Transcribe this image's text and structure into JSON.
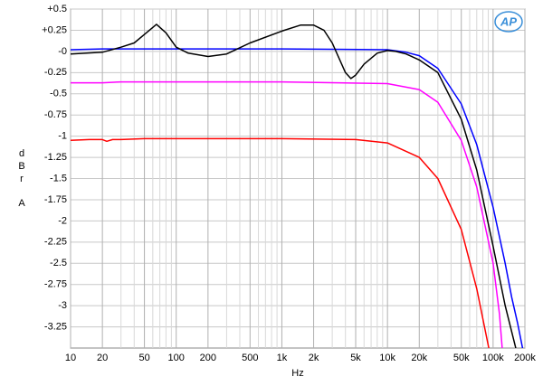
{
  "chart_data": {
    "type": "line",
    "xlabel": "Hz",
    "ylabel": [
      "d",
      "B",
      "r",
      "A"
    ],
    "logx": true,
    "grid": true,
    "xlim": [
      10,
      200000
    ],
    "ylim": [
      -3.5,
      0.5
    ],
    "yticks": [
      {
        "value": 0.5,
        "label": "+0.5"
      },
      {
        "value": 0.25,
        "label": "+0.25"
      },
      {
        "value": 0,
        "label": "-0"
      },
      -0.25,
      -0.5,
      -0.75,
      -1,
      -1.25,
      -1.5,
      -1.75,
      -2,
      -2.25,
      -2.5,
      -2.75,
      -3,
      -3.25
    ],
    "xticks": [
      10,
      20,
      50,
      100,
      200,
      500,
      {
        "value": 1000,
        "label": "1k"
      },
      {
        "value": 2000,
        "label": "2k"
      },
      {
        "value": 5000,
        "label": "5k"
      },
      {
        "value": 10000,
        "label": "10k"
      },
      {
        "value": 20000,
        "label": "20k"
      },
      {
        "value": 50000,
        "label": "50k"
      },
      {
        "value": 100000,
        "label": "100k"
      },
      {
        "value": 200000,
        "label": "200k"
      }
    ],
    "xminorticks": [
      30,
      40,
      60,
      70,
      80,
      90,
      300,
      400,
      600,
      700,
      800,
      900,
      3000,
      4000,
      6000,
      7000,
      8000,
      9000,
      30000,
      40000,
      60000,
      70000,
      80000,
      90000,
      300000,
      400000,
      600000,
      700000,
      800000,
      900000
    ],
    "series": [
      {
        "color": "#0000ff",
        "x": [
          10,
          20,
          50,
          100,
          1000,
          10000,
          15000,
          20000,
          30000,
          50000,
          70000,
          100000,
          130000,
          150000,
          170000,
          190000
        ],
        "values": [
          0.02,
          0.03,
          0.03,
          0.03,
          0.03,
          0.02,
          -0.01,
          -0.05,
          -0.2,
          -0.62,
          -1.1,
          -1.84,
          -2.5,
          -2.9,
          -3.2,
          -3.5
        ]
      },
      {
        "color": "#ff00ff",
        "x": [
          10,
          20,
          30,
          50,
          100,
          1000,
          10000,
          20000,
          30000,
          50000,
          70000,
          100000,
          115000,
          122000
        ],
        "values": [
          -0.37,
          -0.37,
          -0.36,
          -0.36,
          -0.36,
          -0.36,
          -0.38,
          -0.45,
          -0.6,
          -1.05,
          -1.6,
          -2.5,
          -3.1,
          -3.5
        ]
      },
      {
        "color": "#000000",
        "x": [
          10,
          20,
          30,
          40,
          50,
          65,
          80,
          100,
          130,
          200,
          300,
          500,
          1000,
          1500,
          2000,
          2500,
          3000,
          4000,
          4500,
          5000,
          6000,
          8000,
          10000,
          12000,
          15000,
          20000,
          30000,
          50000,
          70000,
          100000,
          130000,
          164000
        ],
        "values": [
          -0.03,
          -0.01,
          0.05,
          0.1,
          0.2,
          0.32,
          0.22,
          0.05,
          -0.02,
          -0.06,
          -0.03,
          0.1,
          0.24,
          0.31,
          0.31,
          0.25,
          0.1,
          -0.25,
          -0.32,
          -0.28,
          -0.15,
          -0.02,
          0.01,
          0,
          -0.03,
          -0.1,
          -0.25,
          -0.8,
          -1.4,
          -2.3,
          -3.0,
          -3.5
        ]
      },
      {
        "color": "#ff0000",
        "x": [
          10,
          15,
          20,
          22,
          25,
          30,
          50,
          100,
          1000,
          5000,
          10000,
          20000,
          30000,
          50000,
          70000,
          91000
        ],
        "values": [
          -1.05,
          -1.04,
          -1.04,
          -1.06,
          -1.04,
          -1.04,
          -1.03,
          -1.03,
          -1.03,
          -1.04,
          -1.08,
          -1.25,
          -1.5,
          -2.1,
          -2.8,
          -3.5
        ]
      }
    ]
  }
}
